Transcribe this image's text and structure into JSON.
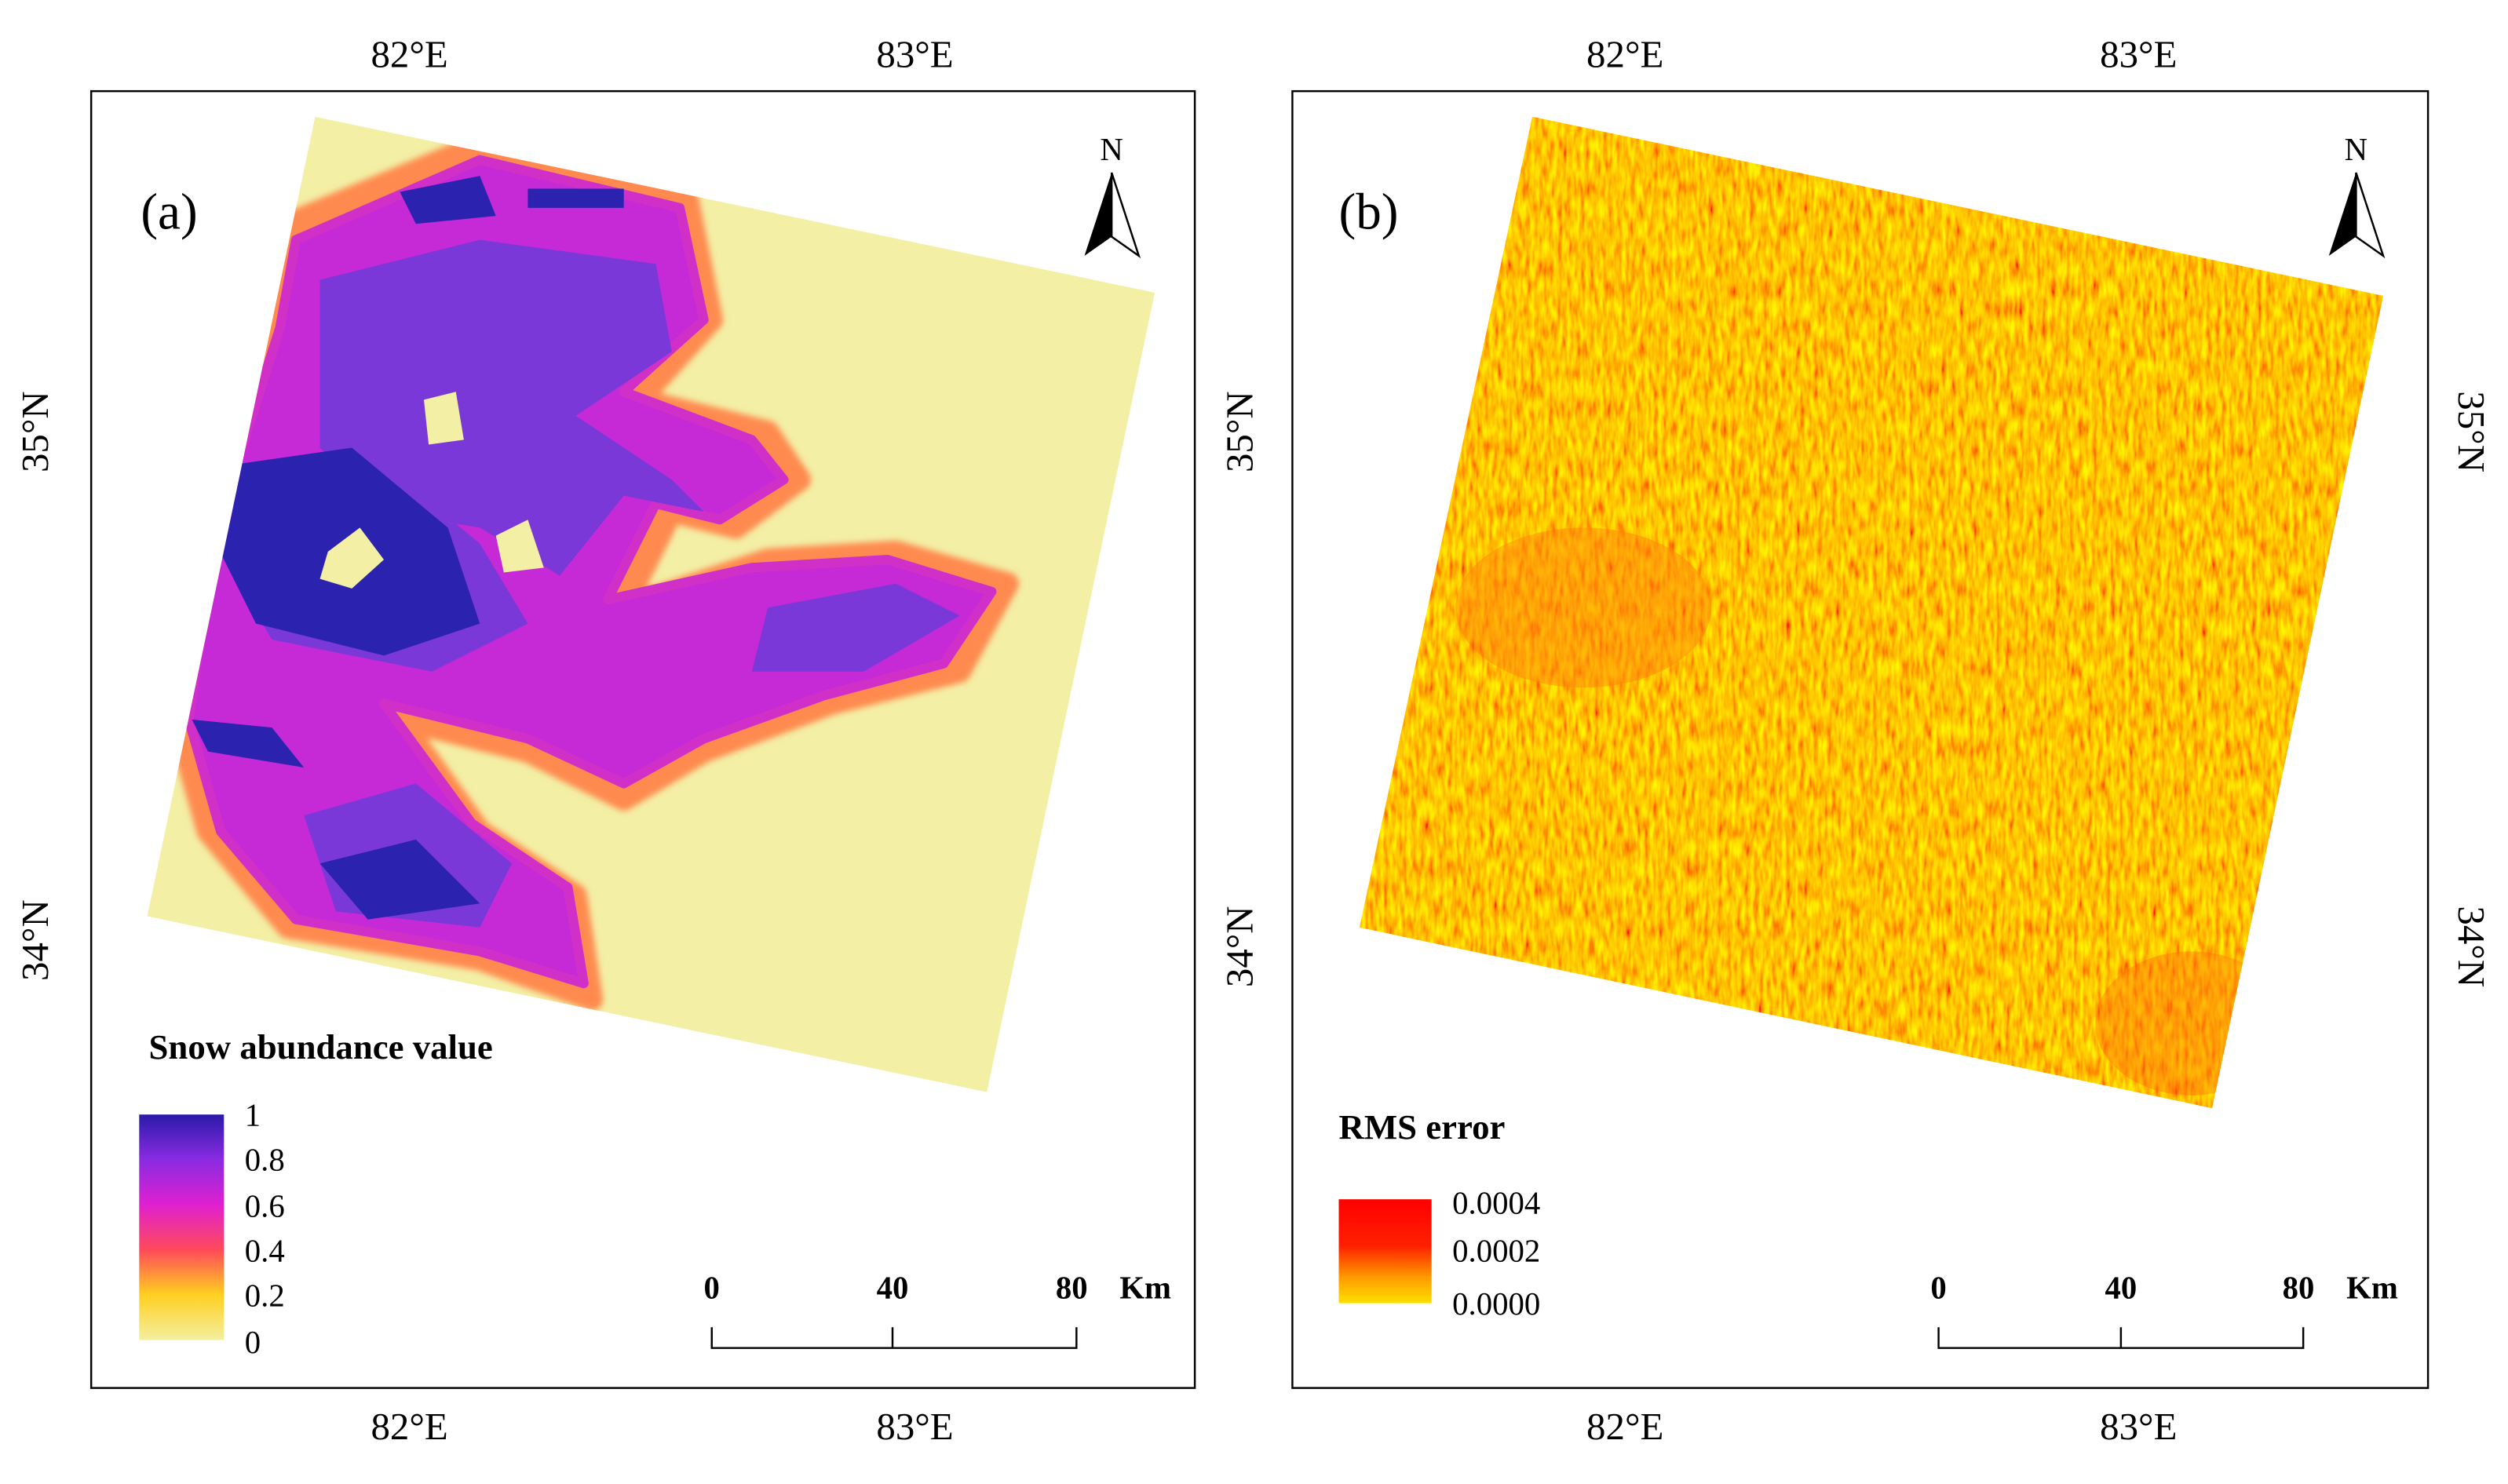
{
  "panels": [
    {
      "label": "(a)",
      "north": "N",
      "lon_labels": [
        "82°E",
        "83°E"
      ],
      "lat_labels": [
        "35°N",
        "34°N"
      ],
      "legend": {
        "title": "Snow abundance value",
        "labels": [
          "1",
          "0.8",
          "0.6",
          "0.4",
          "0.2",
          "0"
        ]
      },
      "scale_bar": {
        "labels": [
          "0",
          "40",
          "80"
        ],
        "unit": "Km"
      }
    },
    {
      "label": "(b)",
      "north": "N",
      "lon_labels": [
        "82°E",
        "83°E"
      ],
      "lat_labels": [
        "35°N",
        "34°N"
      ],
      "legend": {
        "title": "RMS error",
        "labels": [
          "0.0004",
          "0.0002",
          "0.0000"
        ]
      },
      "scale_bar": {
        "labels": [
          "0",
          "40",
          "80"
        ],
        "unit": "Km"
      }
    }
  ]
}
